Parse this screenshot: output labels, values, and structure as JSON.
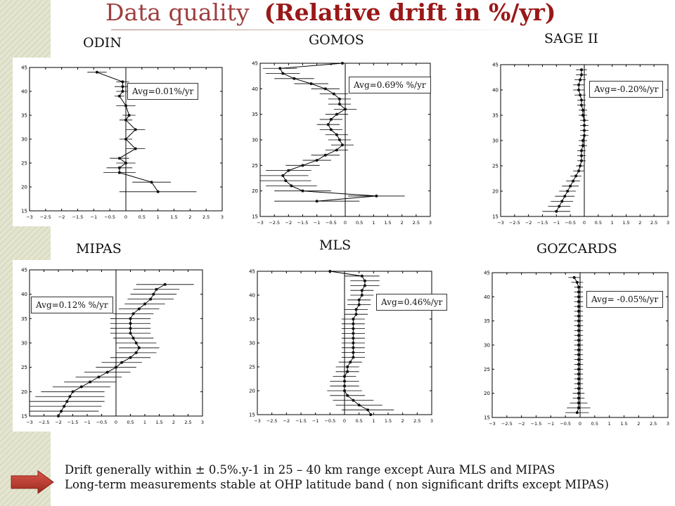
{
  "title": {
    "main": "Data quality",
    "sub": "(Relative drift in  %/yr)"
  },
  "notes": [
    "Drift generally within ± 0.5%.y-1 in 25 – 40 km range except Aura MLS and MIPAS",
    "Long-term measurements stable at OHP latitude band ( non significant drifts except MIPAS)"
  ],
  "colors": {
    "stripe": "#d9dbc2",
    "title_main": "#9e3e3e",
    "title_sub": "#9a1818",
    "arrow": "#b53226"
  },
  "icons": {
    "arrow": "right-arrow-icon"
  },
  "chart_data": [
    {
      "type": "scatter",
      "id": "odin",
      "label": "ODIN",
      "avg_label": "Avg=0.01%/yr",
      "xlim": [
        -3,
        3
      ],
      "ylim": [
        15,
        45
      ],
      "xticks": [
        "−3",
        "−2.5",
        "−2",
        "−1.5",
        "−1",
        "−0.5",
        "0",
        "0.5",
        "1",
        "1.5",
        "2",
        "2.5",
        "3"
      ],
      "yticks": [
        "15",
        "20",
        "25",
        "30",
        "35",
        "40",
        "45"
      ],
      "y": [
        44,
        42,
        41,
        40,
        39,
        37,
        35,
        34,
        32,
        30,
        28,
        26,
        25,
        24,
        23,
        21,
        19
      ],
      "x": [
        -0.9,
        -0.1,
        -0.1,
        -0.1,
        -0.2,
        0.0,
        0.1,
        0.0,
        0.3,
        0.0,
        0.3,
        -0.2,
        0.0,
        -0.2,
        -0.2,
        0.8,
        1.0
      ],
      "err": [
        0.3,
        0.2,
        0.25,
        0.2,
        0.15,
        0.3,
        0.2,
        0.2,
        0.3,
        0.2,
        0.3,
        0.3,
        0.3,
        0.4,
        0.5,
        0.6,
        1.2
      ]
    },
    {
      "type": "scatter",
      "id": "gomos",
      "label": "GOMOS",
      "avg_label": "Avg=0.69% %/yr",
      "xlim": [
        -3,
        3
      ],
      "ylim": [
        15,
        45
      ],
      "xticks": [
        "−3",
        "−2.5",
        "−2",
        "−1.5",
        "−1",
        "−0.5",
        "0",
        "0.5",
        "1",
        "1.5",
        "2",
        "2.5",
        "3"
      ],
      "yticks": [
        "15",
        "20",
        "25",
        "30",
        "35",
        "40",
        "45"
      ],
      "y": [
        45,
        44,
        43,
        42,
        41,
        40,
        39,
        38,
        37,
        36,
        35,
        34,
        33,
        32,
        31,
        30,
        29,
        28,
        27,
        26,
        25,
        24,
        23,
        22,
        21,
        20,
        19,
        18
      ],
      "x": [
        -0.1,
        -2.3,
        -2.2,
        -1.8,
        -1.2,
        -0.7,
        -0.4,
        -0.2,
        -0.2,
        0.0,
        -0.3,
        -0.5,
        -0.6,
        -0.5,
        -0.3,
        -0.2,
        -0.1,
        -0.3,
        -0.7,
        -1.0,
        -1.5,
        -2.0,
        -2.2,
        -2.1,
        -1.9,
        -1.5,
        1.1,
        -1.0
      ],
      "err": [
        2.0,
        0.6,
        0.6,
        0.7,
        0.6,
        0.5,
        0.5,
        0.4,
        0.4,
        0.4,
        0.4,
        0.4,
        0.4,
        0.4,
        0.4,
        0.4,
        0.4,
        0.4,
        0.5,
        0.5,
        0.6,
        0.8,
        0.9,
        0.9,
        0.9,
        1.0,
        1.0,
        1.5
      ]
    },
    {
      "type": "scatter",
      "id": "sage2",
      "label": "SAGE II",
      "avg_label": "Avg=-0.20%/yr",
      "xlim": [
        -3,
        3
      ],
      "ylim": [
        15,
        45
      ],
      "xticks": [
        "−3",
        "−2.5",
        "−2",
        "−1.5",
        "−1",
        "−0.5",
        "0",
        "0.5",
        "1",
        "1.5",
        "2",
        "2.5",
        "3"
      ],
      "yticks": [
        "15",
        "20",
        "25",
        "30",
        "35",
        "40",
        "45"
      ],
      "y": [
        44,
        43,
        42,
        41,
        40,
        39,
        38,
        37,
        36,
        35,
        34,
        33,
        32,
        31,
        30,
        29,
        28,
        27,
        26,
        25,
        24,
        23,
        22,
        21,
        20,
        19,
        18,
        17,
        16
      ],
      "x": [
        -0.1,
        -0.1,
        -0.15,
        -0.2,
        -0.2,
        -0.15,
        -0.1,
        -0.1,
        -0.05,
        -0.05,
        0.0,
        0.0,
        0.0,
        0.0,
        -0.05,
        -0.05,
        -0.1,
        -0.1,
        -0.1,
        -0.15,
        -0.2,
        -0.3,
        -0.4,
        -0.5,
        -0.6,
        -0.7,
        -0.8,
        -0.9,
        -1.0
      ],
      "err": [
        0.2,
        0.2,
        0.2,
        0.2,
        0.2,
        0.2,
        0.15,
        0.15,
        0.15,
        0.15,
        0.15,
        0.15,
        0.15,
        0.15,
        0.15,
        0.15,
        0.15,
        0.15,
        0.15,
        0.15,
        0.2,
        0.2,
        0.25,
        0.3,
        0.3,
        0.35,
        0.4,
        0.4,
        0.5
      ]
    },
    {
      "type": "scatter",
      "id": "mipas",
      "label": "MIPAS",
      "avg_label": "Avg=0.12% %/yr",
      "xlim": [
        -3,
        3
      ],
      "ylim": [
        15,
        45
      ],
      "xticks": [
        "−3",
        "−2.5",
        "−2",
        "−1.5",
        "−1",
        "−0.5",
        "0",
        "0.5",
        "1",
        "1.5",
        "2",
        "2.5",
        "3"
      ],
      "yticks": [
        "15",
        "20",
        "25",
        "30",
        "35",
        "40",
        "45"
      ],
      "y": [
        42,
        41,
        40,
        39,
        38,
        37,
        36,
        35,
        34,
        33,
        32,
        31,
        30,
        29,
        28,
        27,
        26,
        25,
        24,
        23,
        22,
        21,
        20,
        19,
        18,
        17,
        16,
        15
      ],
      "x": [
        1.7,
        1.4,
        1.3,
        1.2,
        1.0,
        0.8,
        0.6,
        0.5,
        0.5,
        0.5,
        0.5,
        0.6,
        0.7,
        0.8,
        0.7,
        0.5,
        0.2,
        0.0,
        -0.3,
        -0.6,
        -0.9,
        -1.2,
        -1.5,
        -1.6,
        -1.7,
        -1.8,
        -1.9,
        -2.0
      ],
      "err": [
        1.0,
        0.8,
        0.8,
        0.8,
        0.7,
        0.7,
        0.7,
        0.7,
        0.7,
        0.7,
        0.7,
        0.7,
        0.7,
        0.7,
        0.7,
        0.7,
        0.7,
        0.7,
        0.8,
        0.8,
        0.9,
        1.0,
        1.1,
        1.2,
        1.3,
        1.3,
        1.3,
        1.3
      ]
    },
    {
      "type": "scatter",
      "id": "mls",
      "label": "MLS",
      "avg_label": "Avg=0.46%/yr",
      "xlim": [
        -3,
        3
      ],
      "ylim": [
        15,
        45
      ],
      "xticks": [
        "−3",
        "−2.5",
        "−2",
        "−1.5",
        "−1",
        "−0.5",
        "0",
        "0.5",
        "1",
        "1.5",
        "2",
        "2.5",
        "3"
      ],
      "yticks": [
        "15",
        "20",
        "25",
        "30",
        "35",
        "40",
        "45"
      ],
      "y": [
        45,
        44,
        43,
        42,
        41,
        40,
        39,
        38,
        37,
        36,
        35,
        34,
        33,
        32,
        31,
        30,
        29,
        28,
        27,
        26,
        25,
        24,
        23,
        22,
        21,
        20,
        19,
        18,
        17,
        16,
        15
      ],
      "x": [
        -0.5,
        0.6,
        0.7,
        0.7,
        0.6,
        0.6,
        0.5,
        0.5,
        0.4,
        0.4,
        0.3,
        0.3,
        0.3,
        0.3,
        0.3,
        0.3,
        0.3,
        0.3,
        0.3,
        0.2,
        0.1,
        0.1,
        0.0,
        0.0,
        0.0,
        0.0,
        0.1,
        0.3,
        0.5,
        0.8,
        0.9
      ],
      "err": [
        0.3,
        0.6,
        0.5,
        0.5,
        0.4,
        0.4,
        0.4,
        0.4,
        0.4,
        0.4,
        0.4,
        0.4,
        0.4,
        0.4,
        0.4,
        0.4,
        0.4,
        0.4,
        0.4,
        0.4,
        0.4,
        0.4,
        0.4,
        0.5,
        0.5,
        0.6,
        0.6,
        0.7,
        0.8,
        0.9,
        1.0
      ]
    },
    {
      "type": "scatter",
      "id": "gozcards",
      "label": "GOZCARDS",
      "avg_label": "Avg= -0.05%/yr",
      "xlim": [
        -3,
        3
      ],
      "ylim": [
        15,
        45
      ],
      "xticks": [
        "−3",
        "−2.5",
        "−2",
        "−1.5",
        "−1",
        "−0.5",
        "0",
        "0.5",
        "1",
        "1.5",
        "2",
        "2.5",
        "3"
      ],
      "yticks": [
        "15",
        "20",
        "25",
        "30",
        "35",
        "40",
        "45"
      ],
      "y": [
        44,
        43,
        42,
        41,
        40,
        39,
        38,
        37,
        36,
        35,
        34,
        33,
        32,
        31,
        30,
        29,
        28,
        27,
        26,
        25,
        24,
        23,
        22,
        21,
        20,
        19,
        18,
        17,
        16
      ],
      "x": [
        -0.2,
        -0.1,
        -0.05,
        -0.05,
        -0.05,
        -0.05,
        -0.05,
        -0.05,
        -0.05,
        -0.05,
        -0.05,
        -0.05,
        -0.05,
        -0.05,
        -0.05,
        -0.05,
        -0.05,
        -0.05,
        -0.05,
        -0.05,
        -0.05,
        -0.05,
        -0.05,
        -0.05,
        -0.05,
        -0.05,
        -0.05,
        -0.05,
        -0.1
      ],
      "err": [
        0.2,
        0.2,
        0.15,
        0.15,
        0.15,
        0.15,
        0.15,
        0.15,
        0.15,
        0.15,
        0.15,
        0.15,
        0.15,
        0.15,
        0.15,
        0.15,
        0.15,
        0.15,
        0.15,
        0.15,
        0.15,
        0.15,
        0.15,
        0.15,
        0.2,
        0.2,
        0.3,
        0.4,
        0.4
      ]
    }
  ]
}
